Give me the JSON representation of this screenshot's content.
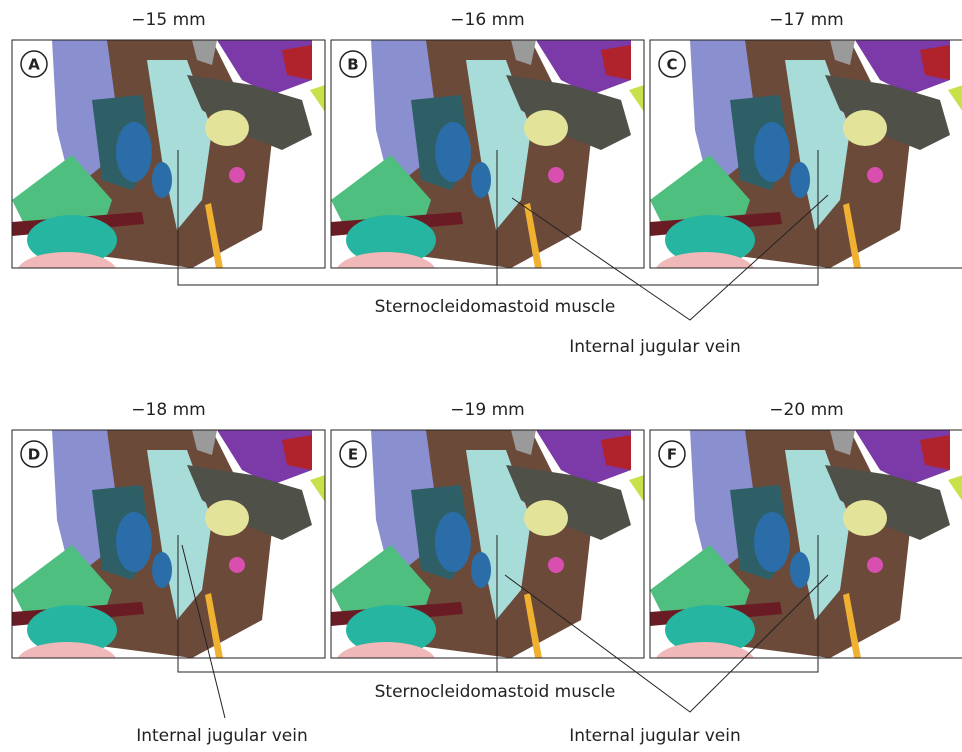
{
  "panels": [
    {
      "label": "A",
      "depth": "−15 mm"
    },
    {
      "label": "B",
      "depth": "−16 mm"
    },
    {
      "label": "C",
      "depth": "−17 mm"
    },
    {
      "label": "D",
      "depth": "−18 mm"
    },
    {
      "label": "E",
      "depth": "−19 mm"
    },
    {
      "label": "F",
      "depth": "−20 mm"
    }
  ],
  "top_annotations": {
    "muscle": "Sternocleidomastoid muscle",
    "vein": "Internal jugular vein"
  },
  "bottom_annotations": {
    "muscle": "Sternocleidomastoid muscle",
    "vein_left": "Internal jugular vein",
    "vein_right": "Internal jugular vein"
  }
}
